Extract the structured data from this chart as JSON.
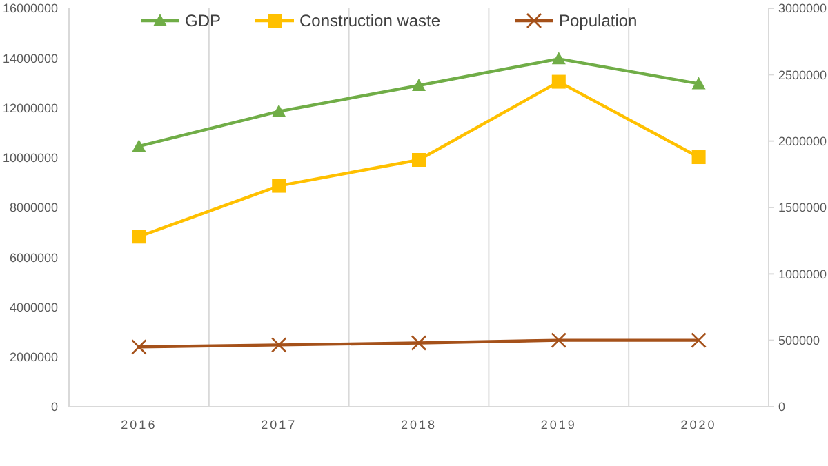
{
  "chart_data": {
    "type": "line",
    "categories": [
      "2016",
      "2017",
      "2018",
      "2019",
      "2020"
    ],
    "series": [
      {
        "name": "GDP",
        "color": "#70ad47",
        "marker": "triangle",
        "values": [
          10460000,
          11860000,
          12900000,
          13970000,
          12970000
        ]
      },
      {
        "name": "Construction waste",
        "color": "#ffc000",
        "marker": "square",
        "values": [
          6830000,
          8870000,
          9910000,
          13050000,
          10020000
        ]
      },
      {
        "name": "Population",
        "color": "#a5511a",
        "marker": "cross",
        "axis": "y2",
        "values": [
          450000,
          465000,
          480000,
          500000,
          500000
        ]
      }
    ],
    "ylim": [
      0,
      16000000
    ],
    "yticks": [
      0,
      2000000,
      4000000,
      6000000,
      8000000,
      10000000,
      12000000,
      14000000,
      16000000
    ],
    "y2lim": [
      0,
      3000000
    ],
    "y2ticks": [
      0,
      500000,
      1000000,
      1500000,
      2000000,
      2500000,
      3000000
    ],
    "grid": "x",
    "legend": "top"
  }
}
